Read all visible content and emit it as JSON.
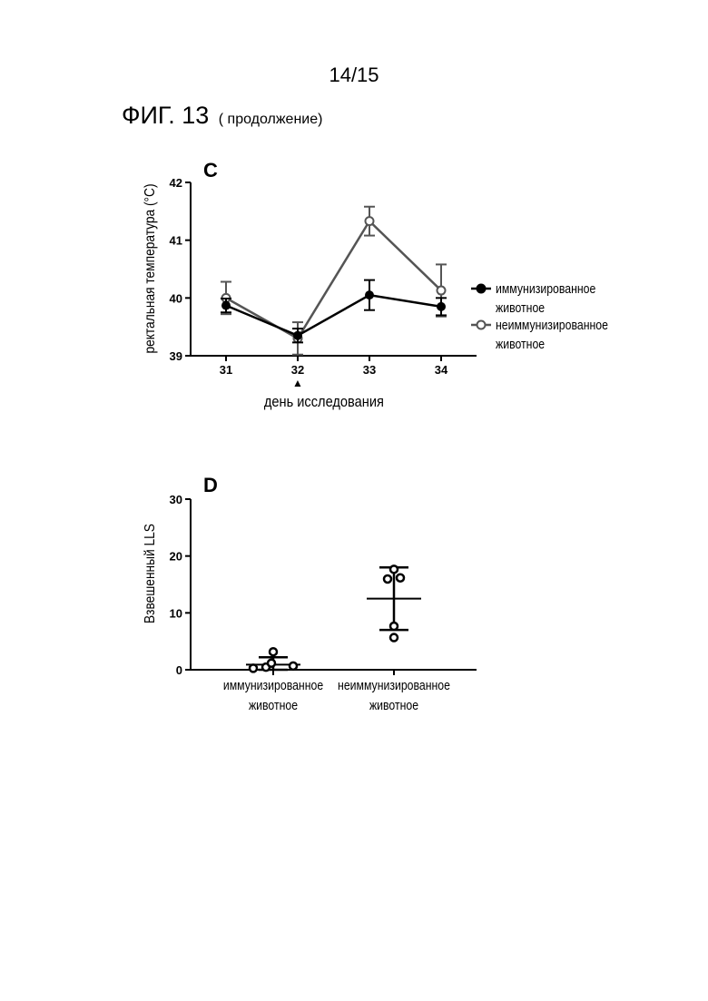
{
  "page": {
    "number": "14/15",
    "figure_title": "ФИГ. 13",
    "figure_subtitle": "( продолжение)"
  },
  "chart_data": [
    {
      "type": "line",
      "panel_label": "C",
      "xlabel": "день исследования",
      "ylabel": "ректальная температура (°C)",
      "categories": [
        "31",
        "32",
        "33",
        "34"
      ],
      "ylim": [
        39,
        42
      ],
      "yticks": [
        "39",
        "40",
        "41",
        "42"
      ],
      "marker_below_category": "32",
      "marker_symbol": "▲",
      "legend_position": "right",
      "series": [
        {
          "name": "иммунизированное животное",
          "name_lines": [
            "иммунизированное",
            "животное"
          ],
          "marker": "filled-circle",
          "color": "#000000",
          "values": [
            39.87,
            39.35,
            40.05,
            39.85
          ],
          "error": [
            0.12,
            0.12,
            0.26,
            0.15
          ]
        },
        {
          "name": "неиммунизированное животное",
          "name_lines": [
            "неиммунизированное",
            "животное"
          ],
          "marker": "open-circle",
          "color": "#555555",
          "values": [
            40.0,
            39.3,
            41.33,
            40.13
          ],
          "error": [
            0.28,
            0.28,
            0.25,
            0.45
          ]
        }
      ]
    },
    {
      "type": "scatter",
      "panel_label": "D",
      "ylabel": "Взвешенный LLS",
      "ylim": [
        0,
        30
      ],
      "yticks": [
        "0",
        "10",
        "20",
        "30"
      ],
      "groups": [
        {
          "label_lines": [
            "иммунизированное",
            "животное"
          ],
          "points": [
            0.1,
            0.3,
            1.0,
            0.5,
            3.0
          ],
          "mean": 0.9,
          "sd_upper": 2.2,
          "sd_lower": 0.0
        },
        {
          "label_lines": [
            "неиммунизированное",
            "животное"
          ],
          "points": [
            17.5,
            15.8,
            16.0,
            7.5,
            5.5
          ],
          "mean": 12.5,
          "sd_upper": 18.0,
          "sd_lower": 7.0
        }
      ]
    }
  ]
}
